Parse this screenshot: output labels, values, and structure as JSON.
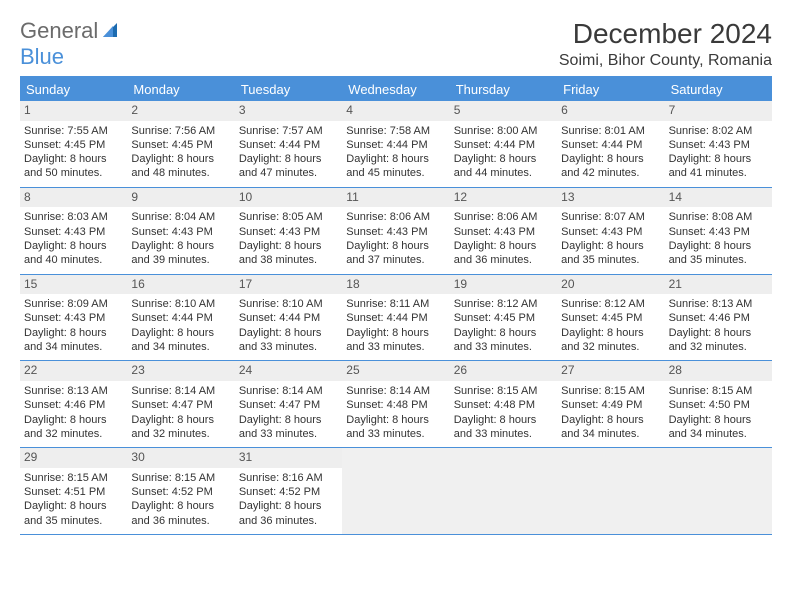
{
  "brand": {
    "text1": "General",
    "text2": "Blue"
  },
  "title": "December 2024",
  "location": "Soimi, Bihor County, Romania",
  "colors": {
    "accent": "#4a90d9",
    "band": "#eeeeee",
    "text": "#333333",
    "logo_gray": "#6b6b6b"
  },
  "dow": [
    "Sunday",
    "Monday",
    "Tuesday",
    "Wednesday",
    "Thursday",
    "Friday",
    "Saturday"
  ],
  "weeks": [
    [
      {
        "n": "1",
        "sr": "Sunrise: 7:55 AM",
        "ss": "Sunset: 4:45 PM",
        "d1": "Daylight: 8 hours",
        "d2": "and 50 minutes."
      },
      {
        "n": "2",
        "sr": "Sunrise: 7:56 AM",
        "ss": "Sunset: 4:45 PM",
        "d1": "Daylight: 8 hours",
        "d2": "and 48 minutes."
      },
      {
        "n": "3",
        "sr": "Sunrise: 7:57 AM",
        "ss": "Sunset: 4:44 PM",
        "d1": "Daylight: 8 hours",
        "d2": "and 47 minutes."
      },
      {
        "n": "4",
        "sr": "Sunrise: 7:58 AM",
        "ss": "Sunset: 4:44 PM",
        "d1": "Daylight: 8 hours",
        "d2": "and 45 minutes."
      },
      {
        "n": "5",
        "sr": "Sunrise: 8:00 AM",
        "ss": "Sunset: 4:44 PM",
        "d1": "Daylight: 8 hours",
        "d2": "and 44 minutes."
      },
      {
        "n": "6",
        "sr": "Sunrise: 8:01 AM",
        "ss": "Sunset: 4:44 PM",
        "d1": "Daylight: 8 hours",
        "d2": "and 42 minutes."
      },
      {
        "n": "7",
        "sr": "Sunrise: 8:02 AM",
        "ss": "Sunset: 4:43 PM",
        "d1": "Daylight: 8 hours",
        "d2": "and 41 minutes."
      }
    ],
    [
      {
        "n": "8",
        "sr": "Sunrise: 8:03 AM",
        "ss": "Sunset: 4:43 PM",
        "d1": "Daylight: 8 hours",
        "d2": "and 40 minutes."
      },
      {
        "n": "9",
        "sr": "Sunrise: 8:04 AM",
        "ss": "Sunset: 4:43 PM",
        "d1": "Daylight: 8 hours",
        "d2": "and 39 minutes."
      },
      {
        "n": "10",
        "sr": "Sunrise: 8:05 AM",
        "ss": "Sunset: 4:43 PM",
        "d1": "Daylight: 8 hours",
        "d2": "and 38 minutes."
      },
      {
        "n": "11",
        "sr": "Sunrise: 8:06 AM",
        "ss": "Sunset: 4:43 PM",
        "d1": "Daylight: 8 hours",
        "d2": "and 37 minutes."
      },
      {
        "n": "12",
        "sr": "Sunrise: 8:06 AM",
        "ss": "Sunset: 4:43 PM",
        "d1": "Daylight: 8 hours",
        "d2": "and 36 minutes."
      },
      {
        "n": "13",
        "sr": "Sunrise: 8:07 AM",
        "ss": "Sunset: 4:43 PM",
        "d1": "Daylight: 8 hours",
        "d2": "and 35 minutes."
      },
      {
        "n": "14",
        "sr": "Sunrise: 8:08 AM",
        "ss": "Sunset: 4:43 PM",
        "d1": "Daylight: 8 hours",
        "d2": "and 35 minutes."
      }
    ],
    [
      {
        "n": "15",
        "sr": "Sunrise: 8:09 AM",
        "ss": "Sunset: 4:43 PM",
        "d1": "Daylight: 8 hours",
        "d2": "and 34 minutes."
      },
      {
        "n": "16",
        "sr": "Sunrise: 8:10 AM",
        "ss": "Sunset: 4:44 PM",
        "d1": "Daylight: 8 hours",
        "d2": "and 34 minutes."
      },
      {
        "n": "17",
        "sr": "Sunrise: 8:10 AM",
        "ss": "Sunset: 4:44 PM",
        "d1": "Daylight: 8 hours",
        "d2": "and 33 minutes."
      },
      {
        "n": "18",
        "sr": "Sunrise: 8:11 AM",
        "ss": "Sunset: 4:44 PM",
        "d1": "Daylight: 8 hours",
        "d2": "and 33 minutes."
      },
      {
        "n": "19",
        "sr": "Sunrise: 8:12 AM",
        "ss": "Sunset: 4:45 PM",
        "d1": "Daylight: 8 hours",
        "d2": "and 33 minutes."
      },
      {
        "n": "20",
        "sr": "Sunrise: 8:12 AM",
        "ss": "Sunset: 4:45 PM",
        "d1": "Daylight: 8 hours",
        "d2": "and 32 minutes."
      },
      {
        "n": "21",
        "sr": "Sunrise: 8:13 AM",
        "ss": "Sunset: 4:46 PM",
        "d1": "Daylight: 8 hours",
        "d2": "and 32 minutes."
      }
    ],
    [
      {
        "n": "22",
        "sr": "Sunrise: 8:13 AM",
        "ss": "Sunset: 4:46 PM",
        "d1": "Daylight: 8 hours",
        "d2": "and 32 minutes."
      },
      {
        "n": "23",
        "sr": "Sunrise: 8:14 AM",
        "ss": "Sunset: 4:47 PM",
        "d1": "Daylight: 8 hours",
        "d2": "and 32 minutes."
      },
      {
        "n": "24",
        "sr": "Sunrise: 8:14 AM",
        "ss": "Sunset: 4:47 PM",
        "d1": "Daylight: 8 hours",
        "d2": "and 33 minutes."
      },
      {
        "n": "25",
        "sr": "Sunrise: 8:14 AM",
        "ss": "Sunset: 4:48 PM",
        "d1": "Daylight: 8 hours",
        "d2": "and 33 minutes."
      },
      {
        "n": "26",
        "sr": "Sunrise: 8:15 AM",
        "ss": "Sunset: 4:48 PM",
        "d1": "Daylight: 8 hours",
        "d2": "and 33 minutes."
      },
      {
        "n": "27",
        "sr": "Sunrise: 8:15 AM",
        "ss": "Sunset: 4:49 PM",
        "d1": "Daylight: 8 hours",
        "d2": "and 34 minutes."
      },
      {
        "n": "28",
        "sr": "Sunrise: 8:15 AM",
        "ss": "Sunset: 4:50 PM",
        "d1": "Daylight: 8 hours",
        "d2": "and 34 minutes."
      }
    ],
    [
      {
        "n": "29",
        "sr": "Sunrise: 8:15 AM",
        "ss": "Sunset: 4:51 PM",
        "d1": "Daylight: 8 hours",
        "d2": "and 35 minutes."
      },
      {
        "n": "30",
        "sr": "Sunrise: 8:15 AM",
        "ss": "Sunset: 4:52 PM",
        "d1": "Daylight: 8 hours",
        "d2": "and 36 minutes."
      },
      {
        "n": "31",
        "sr": "Sunrise: 8:16 AM",
        "ss": "Sunset: 4:52 PM",
        "d1": "Daylight: 8 hours",
        "d2": "and 36 minutes."
      },
      null,
      null,
      null,
      null
    ]
  ]
}
